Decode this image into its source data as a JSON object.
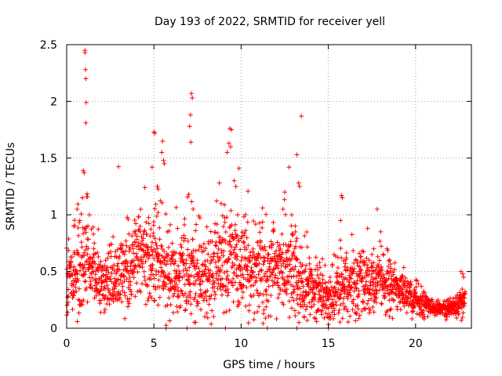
{
  "chart_data": {
    "type": "scatter",
    "title": "Day 193 of 2022, SRMTID for receiver yell",
    "xlabel": "GPS time / hours",
    "ylabel": "SRMTID / TECUs",
    "xlim": [
      0,
      23.2
    ],
    "ylim": [
      0,
      2.5
    ],
    "x_ticks": [
      0,
      5,
      10,
      15,
      20
    ],
    "x_tick_labels": [
      "0",
      "5",
      "10",
      "15",
      "20"
    ],
    "y_ticks": [
      0,
      0.5,
      1,
      1.5,
      2,
      2.5
    ],
    "y_tick_labels": [
      "0",
      "0.5",
      "1",
      "1.5",
      "2",
      "2.5"
    ],
    "grid": true,
    "marker": "+",
    "color": "#ff0000",
    "series": [
      {
        "name": "SRMTID",
        "envelope": {
          "description": "Dense scatter of SRMTID values; typical level per hour",
          "hours": [
            0,
            1,
            2,
            3,
            4,
            5,
            6,
            7,
            8,
            9,
            10,
            11,
            12,
            13,
            14,
            15,
            16,
            17,
            18,
            19,
            20,
            21,
            22,
            22.8
          ],
          "typical": [
            0.45,
            0.55,
            0.4,
            0.45,
            0.6,
            0.6,
            0.45,
            0.55,
            0.45,
            0.6,
            0.55,
            0.55,
            0.5,
            0.5,
            0.35,
            0.3,
            0.35,
            0.4,
            0.4,
            0.35,
            0.25,
            0.18,
            0.18,
            0.25
          ],
          "spread": [
            0.25,
            0.35,
            0.2,
            0.25,
            0.3,
            0.35,
            0.3,
            0.35,
            0.3,
            0.35,
            0.3,
            0.3,
            0.3,
            0.3,
            0.2,
            0.2,
            0.25,
            0.2,
            0.2,
            0.15,
            0.1,
            0.06,
            0.06,
            0.1
          ]
        },
        "points": [
          [
            1.05,
            2.45
          ],
          [
            1.05,
            2.43
          ],
          [
            1.08,
            2.28
          ],
          [
            1.1,
            2.2
          ],
          [
            1.12,
            1.99
          ],
          [
            1.1,
            1.81
          ],
          [
            0.95,
            1.39
          ],
          [
            1.0,
            1.37
          ],
          [
            1.15,
            1.16
          ],
          [
            1.2,
            1.16
          ],
          [
            0.4,
            0.9
          ],
          [
            0.6,
            1.05
          ],
          [
            0.75,
            0.95
          ],
          [
            0.9,
            1.15
          ],
          [
            1.3,
            1.0
          ],
          [
            5.0,
            1.73
          ],
          [
            5.05,
            1.72
          ],
          [
            4.9,
            1.42
          ],
          [
            5.2,
            1.25
          ],
          [
            5.5,
            1.65
          ],
          [
            5.55,
            1.48
          ],
          [
            5.6,
            1.45
          ],
          [
            5.45,
            1.55
          ],
          [
            7.15,
            2.07
          ],
          [
            7.2,
            2.03
          ],
          [
            7.1,
            1.88
          ],
          [
            7.05,
            1.78
          ],
          [
            7.12,
            1.64
          ],
          [
            7.0,
            1.18
          ],
          [
            7.25,
            1.05
          ],
          [
            9.35,
            1.76
          ],
          [
            9.45,
            1.75
          ],
          [
            9.3,
            1.63
          ],
          [
            9.4,
            1.6
          ],
          [
            9.2,
            1.55
          ],
          [
            9.6,
            1.3
          ],
          [
            9.7,
            1.25
          ],
          [
            8.75,
            1.28
          ],
          [
            8.85,
            1.1
          ],
          [
            9.8,
            1.0
          ],
          [
            12.75,
            1.42
          ],
          [
            13.2,
            1.53
          ],
          [
            13.45,
            1.87
          ],
          [
            13.3,
            1.28
          ],
          [
            13.35,
            1.25
          ],
          [
            12.5,
            1.2
          ],
          [
            12.4,
            1.05
          ],
          [
            12.9,
            1.0
          ],
          [
            13.1,
            0.9
          ],
          [
            15.75,
            1.17
          ],
          [
            15.8,
            1.15
          ],
          [
            15.7,
            0.95
          ],
          [
            17.25,
            0.88
          ],
          [
            17.6,
            0.7
          ],
          [
            17.8,
            1.05
          ],
          [
            18.0,
            0.85
          ],
          [
            17.5,
            0.65
          ],
          [
            22.6,
            0.5
          ],
          [
            22.7,
            0.48
          ],
          [
            22.75,
            0.45
          ],
          [
            9.1,
            0.0
          ],
          [
            11.5,
            0.0
          ],
          [
            13.2,
            0.0
          ],
          [
            15.0,
            0.0
          ],
          [
            5.7,
            0.0
          ],
          [
            6.9,
            0.0
          ]
        ]
      }
    ]
  }
}
